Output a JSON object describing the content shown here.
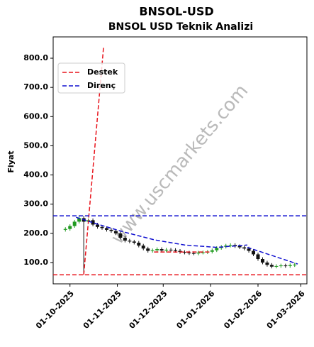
{
  "chart_data": {
    "type": "candlestick",
    "title": "BNSOL-USD",
    "subtitle": "BNSOL USD Teknik Analizi",
    "y_label": "Fiyat",
    "watermark": "www.uscmarkets.com",
    "x": [
      "2025-09-28",
      "2025-10-01",
      "2025-10-04",
      "2025-10-07",
      "2025-10-10",
      "2025-10-13",
      "2025-10-16",
      "2025-10-19",
      "2025-10-22",
      "2025-10-25",
      "2025-10-28",
      "2025-10-31",
      "2025-11-03",
      "2025-11-06",
      "2025-11-09",
      "2025-11-12",
      "2025-11-15",
      "2025-11-18",
      "2025-11-21",
      "2025-11-24",
      "2025-11-27",
      "2025-11-30",
      "2025-12-03",
      "2025-12-06",
      "2025-12-09",
      "2025-12-12",
      "2025-12-15",
      "2025-12-18",
      "2025-12-21",
      "2025-12-24",
      "2025-12-27",
      "2025-12-30",
      "2026-01-02",
      "2026-01-05",
      "2026-01-08",
      "2026-01-11",
      "2026-01-14",
      "2026-01-17",
      "2026-01-20",
      "2026-01-23",
      "2026-01-26",
      "2026-01-29",
      "2026-02-01",
      "2026-02-04",
      "2026-02-07",
      "2026-02-10",
      "2026-02-13",
      "2026-02-16",
      "2026-02-19",
      "2026-02-22",
      "2026-02-25"
    ],
    "open": [
      212,
      215,
      225,
      240,
      252,
      240,
      245,
      230,
      222,
      218,
      212,
      208,
      200,
      185,
      175,
      172,
      168,
      158,
      148,
      140,
      142,
      146,
      141,
      144,
      143,
      140,
      136,
      134,
      132,
      131,
      134,
      135,
      137,
      142,
      150,
      154,
      158,
      160,
      156,
      152,
      148,
      140,
      128,
      112,
      100,
      92,
      86,
      88,
      90,
      88,
      91
    ],
    "high": [
      221,
      231,
      246,
      258,
      260,
      251,
      251,
      236,
      228,
      224,
      218,
      214,
      206,
      191,
      181,
      178,
      174,
      164,
      154,
      148,
      152,
      152,
      150,
      150,
      149,
      146,
      142,
      140,
      138,
      140,
      141,
      143,
      148,
      156,
      160,
      164,
      166,
      166,
      162,
      158,
      154,
      146,
      134,
      118,
      106,
      98,
      94,
      96,
      96,
      97,
      99
    ],
    "low": [
      206,
      209,
      219,
      234,
      58,
      234,
      224,
      216,
      212,
      206,
      202,
      194,
      179,
      169,
      166,
      162,
      152,
      142,
      134,
      134,
      136,
      135,
      135,
      137,
      134,
      130,
      128,
      126,
      125,
      125,
      128,
      129,
      131,
      136,
      144,
      148,
      152,
      150,
      146,
      142,
      134,
      122,
      106,
      94,
      86,
      80,
      80,
      82,
      82,
      82,
      85
    ],
    "close": [
      215,
      225,
      240,
      252,
      240,
      245,
      230,
      222,
      218,
      212,
      208,
      200,
      185,
      175,
      172,
      168,
      158,
      148,
      140,
      142,
      146,
      141,
      144,
      143,
      140,
      136,
      134,
      132,
      131,
      134,
      135,
      137,
      142,
      150,
      154,
      158,
      160,
      156,
      152,
      148,
      140,
      128,
      112,
      100,
      92,
      86,
      88,
      90,
      88,
      91,
      93
    ],
    "up_color": "#1f9a1f",
    "down_color": "#111111",
    "series": [
      {
        "name": "Destek",
        "color": "#e8141c",
        "lines": [
          {
            "x": [
              "2025-10-10",
              "2025-10-23"
            ],
            "y": [
              58,
              840
            ]
          },
          {
            "x": [
              "2025-09-20",
              "2026-03-05"
            ],
            "y": [
              58,
              58
            ]
          },
          {
            "x": [
              "2025-11-25",
              "2026-01-01"
            ],
            "y": [
              136,
              136
            ]
          }
        ]
      },
      {
        "name": "Direnç",
        "color": "#1010d0",
        "lines": [
          {
            "x": [
              "2025-09-20",
              "2026-03-05"
            ],
            "y": [
              260,
              260
            ]
          },
          {
            "x": [
              "2025-10-05",
              "2025-10-20",
              "2025-11-05",
              "2025-11-25",
              "2025-12-15",
              "2026-01-05",
              "2026-01-25"
            ],
            "y": [
              255,
              230,
              205,
              178,
              160,
              152,
              160
            ]
          },
          {
            "x": [
              "2026-01-25",
              "2026-02-27"
            ],
            "y": [
              152,
              95
            ]
          }
        ]
      }
    ],
    "legend": "upper left",
    "xlim": [
      "2025-09-20",
      "2026-03-05"
    ],
    "xticks": [
      {
        "value": "2025-10-01",
        "label": "01-10-2025"
      },
      {
        "value": "2025-11-01",
        "label": "01-11-2025"
      },
      {
        "value": "2025-12-01",
        "label": "01-12-2025"
      },
      {
        "value": "2026-01-01",
        "label": "01-01-2026"
      },
      {
        "value": "2026-02-01",
        "label": "01-02-2026"
      },
      {
        "value": "2026-03-01",
        "label": "01-03-2026"
      }
    ],
    "ylim": [
      27,
      873
    ],
    "yticks": [
      {
        "value": 100,
        "label": "100.0"
      },
      {
        "value": 200,
        "label": "200.0"
      },
      {
        "value": 300,
        "label": "300.0"
      },
      {
        "value": 400,
        "label": "400.0"
      },
      {
        "value": 500,
        "label": "500.0"
      },
      {
        "value": 600,
        "label": "600.0"
      },
      {
        "value": 700,
        "label": "700.0"
      },
      {
        "value": 800,
        "label": "800.0"
      }
    ]
  }
}
